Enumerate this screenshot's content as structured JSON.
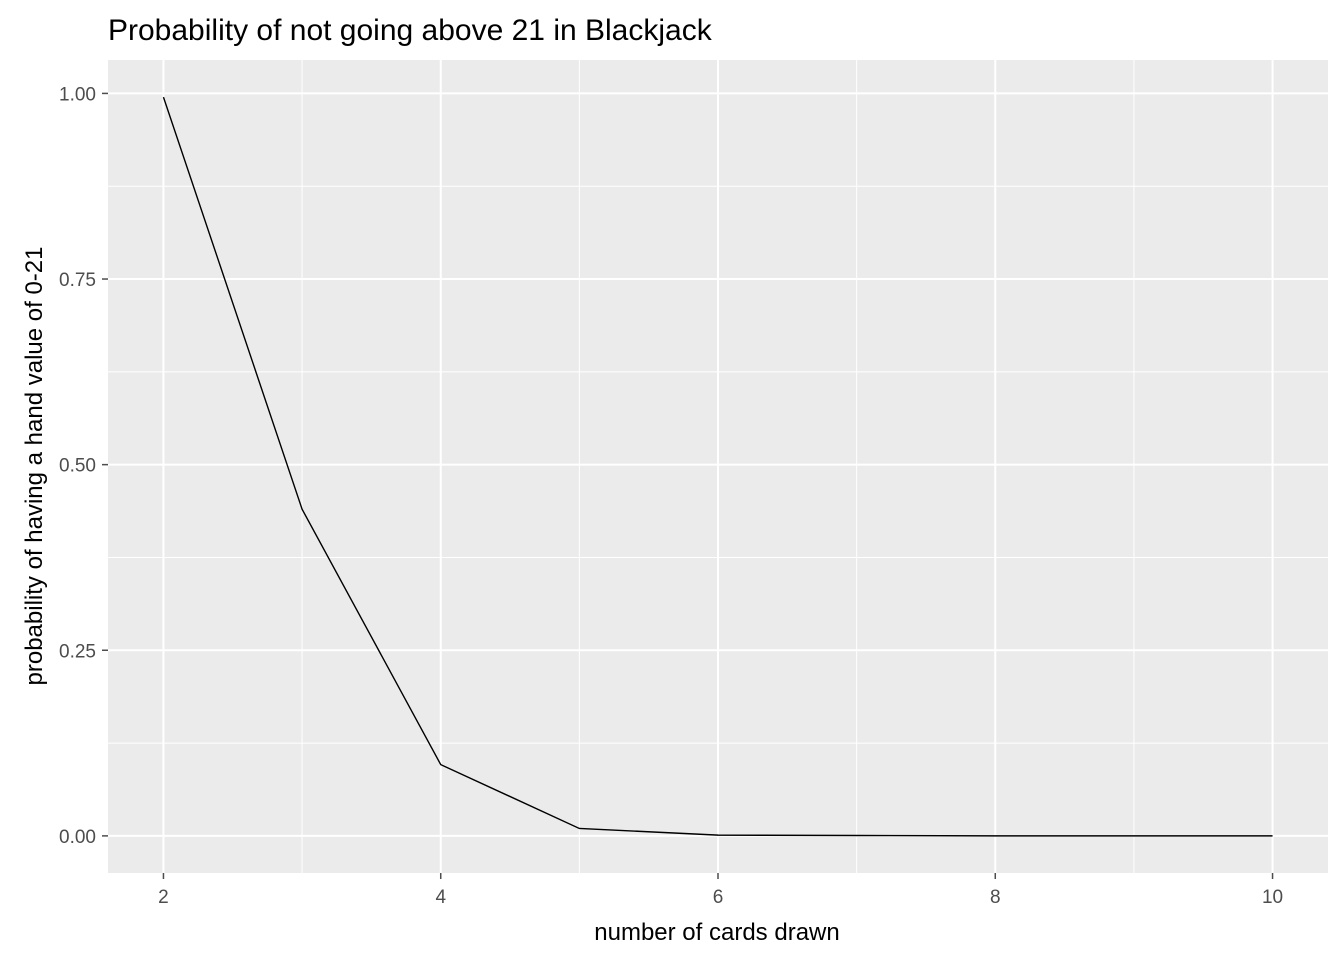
{
  "chart_data": {
    "type": "line",
    "title": "Probability of not going above 21 in Blackjack",
    "xlabel": "number of cards drawn",
    "ylabel": "probability of having a hand value of 0-21",
    "xlim": [
      1.6,
      10.4
    ],
    "ylim": [
      -0.05,
      1.045
    ],
    "x_ticks": [
      2,
      4,
      6,
      8,
      10
    ],
    "y_ticks": [
      0,
      0.25,
      0.5,
      0.75,
      1.0
    ],
    "y_tick_labels": [
      "0.00",
      "0.25",
      "0.50",
      "0.75",
      "1.00"
    ],
    "x_tick_labels": [
      "2",
      "4",
      "6",
      "8",
      "10"
    ],
    "grid": true,
    "series": [
      {
        "x": [
          2,
          3,
          4,
          5,
          6,
          7,
          8,
          9,
          10
        ],
        "values": [
          0.995,
          0.44,
          0.096,
          0.01,
          0.001,
          0.0005,
          0,
          0,
          0
        ],
        "color": "#000000"
      }
    ],
    "panel_background": "#ebebeb",
    "grid_color": "#ffffff",
    "tick_color": "#4d4d4d"
  }
}
